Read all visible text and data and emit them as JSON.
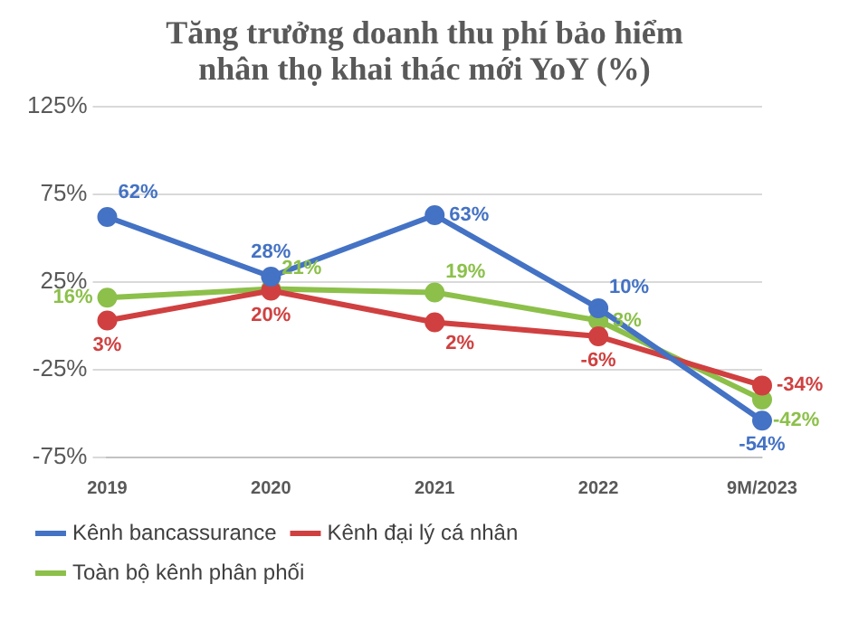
{
  "chart_data": {
    "type": "line",
    "title": "Tăng trưởng doanh thu phí bảo hiểm nhân thọ khai thác mới YoY (%)",
    "categories": [
      "2019",
      "2020",
      "2021",
      "2022",
      "9M/2023"
    ],
    "series": [
      {
        "name": "Kênh bancassurance",
        "color": "#4472c4",
        "values": [
          62,
          28,
          63,
          10,
          -54
        ],
        "value_labels": [
          "62%",
          "28%",
          "63%",
          "10%",
          "-54%"
        ]
      },
      {
        "name": "Kênh đại lý cá nhân",
        "color": "#d04040",
        "values": [
          3,
          20,
          2,
          -6,
          -34
        ],
        "value_labels": [
          "3%",
          "20%",
          "2%",
          "-6%",
          "-34%"
        ]
      },
      {
        "name": "Toàn bộ kênh phân phối",
        "color": "#8cc04a",
        "values": [
          16,
          21,
          19,
          3,
          -42
        ],
        "value_labels": [
          "16%",
          "21%",
          "19%",
          "3%",
          "-42%"
        ]
      }
    ],
    "ylim": [
      -75,
      125
    ],
    "yticks": [
      {
        "value": -75,
        "label": "-75%"
      },
      {
        "value": -25,
        "label": "-25%"
      },
      {
        "value": 25,
        "label": "25%"
      },
      {
        "value": 75,
        "label": "75%"
      },
      {
        "value": 125,
        "label": "125%"
      }
    ],
    "grid": "y",
    "legend": "bottom",
    "marker": "circle",
    "line_style": "solid"
  }
}
